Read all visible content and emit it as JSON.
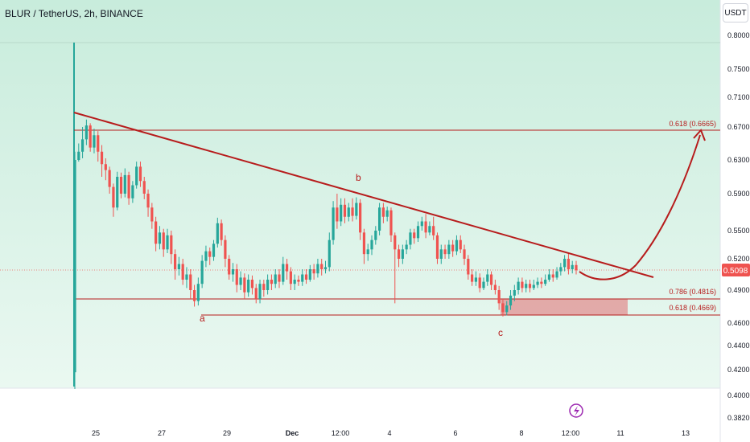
{
  "header": {
    "symbol_title": "BLUR / TetherUS, 2h, BINANCE",
    "currency_badge": "USDT"
  },
  "price_axis": {
    "ticks": [
      "0.8000",
      "0.7500",
      "0.7100",
      "0.6700",
      "0.6300",
      "0.5900",
      "0.5500",
      "0.5200",
      "0.4900",
      "0.4600",
      "0.4400",
      "0.4200",
      "0.4000",
      "0.3820"
    ],
    "current_price": "0.5098"
  },
  "time_axis": {
    "labels": [
      "25",
      "27",
      "29",
      "Dec",
      "12:00",
      "4",
      "6",
      "8",
      "12:00",
      "11",
      "13"
    ]
  },
  "annotations": {
    "fib_top": "0.618 (0.6665)",
    "fib_mid": "0.786 (0.4816)",
    "fib_low": "0.618 (0.4669)",
    "wave_a": "a",
    "wave_b": "b",
    "wave_c": "c"
  },
  "colors": {
    "background_top": "#c8ecdc",
    "background_bottom": "#eaf8f1",
    "up_candle": "#26a69a",
    "down_candle": "#ef5350",
    "drawing": "#b71c1c",
    "zone_fill": "#e29c9c",
    "price_badge": "#ef5350"
  },
  "chart_data": {
    "type": "candlestick",
    "title": "BLUR / TetherUS, 2h, BINANCE",
    "unit": "USDT",
    "interval": "2h",
    "y_ticks": [
      0.8,
      0.75,
      0.71,
      0.67,
      0.63,
      0.59,
      0.55,
      0.52,
      0.49,
      0.46,
      0.44,
      0.42,
      0.4,
      0.382
    ],
    "x_ticks": [
      "25",
      "27",
      "29",
      "Dec",
      "12:00",
      "4",
      "6",
      "8",
      "12:00",
      "11",
      "13"
    ],
    "last_price": 0.5098,
    "fib_levels": [
      {
        "label": "0.618",
        "price": 0.6665
      },
      {
        "label": "0.786",
        "price": 0.4816
      },
      {
        "label": "0.618",
        "price": 0.4669
      }
    ],
    "wave_labels": [
      "a",
      "b",
      "c"
    ],
    "support_zone": [
      0.4669,
      0.4816
    ],
    "candles_ohlc": [
      [
        0.418,
        0.63,
        0.405,
        0.64
      ],
      [
        0.63,
        0.64,
        0.628,
        0.65
      ],
      [
        0.64,
        0.655,
        0.632,
        0.67
      ],
      [
        0.655,
        0.672,
        0.648,
        0.68
      ],
      [
        0.672,
        0.645,
        0.64,
        0.675
      ],
      [
        0.645,
        0.66,
        0.638,
        0.668
      ],
      [
        0.66,
        0.64,
        0.628,
        0.665
      ],
      [
        0.64,
        0.625,
        0.61,
        0.648
      ],
      [
        0.625,
        0.618,
        0.606,
        0.632
      ],
      [
        0.618,
        0.598,
        0.59,
        0.622
      ],
      [
        0.598,
        0.575,
        0.565,
        0.602
      ],
      [
        0.575,
        0.61,
        0.572,
        0.616
      ],
      [
        0.61,
        0.59,
        0.585,
        0.615
      ],
      [
        0.59,
        0.612,
        0.586,
        0.62
      ],
      [
        0.612,
        0.585,
        0.578,
        0.616
      ],
      [
        0.585,
        0.6,
        0.58,
        0.605
      ],
      [
        0.6,
        0.622,
        0.596,
        0.628
      ],
      [
        0.622,
        0.605,
        0.598,
        0.628
      ],
      [
        0.605,
        0.59,
        0.584,
        0.61
      ],
      [
        0.59,
        0.575,
        0.565,
        0.595
      ],
      [
        0.575,
        0.56,
        0.552,
        0.58
      ],
      [
        0.56,
        0.536,
        0.528,
        0.565
      ],
      [
        0.536,
        0.548,
        0.53,
        0.555
      ],
      [
        0.548,
        0.53,
        0.522,
        0.552
      ],
      [
        0.53,
        0.545,
        0.526,
        0.552
      ],
      [
        0.545,
        0.525,
        0.515,
        0.55
      ],
      [
        0.525,
        0.51,
        0.5,
        0.53
      ],
      [
        0.51,
        0.515,
        0.504,
        0.522
      ],
      [
        0.515,
        0.5,
        0.495,
        0.52
      ],
      [
        0.5,
        0.505,
        0.492,
        0.512
      ],
      [
        0.505,
        0.49,
        0.482,
        0.51
      ],
      [
        0.49,
        0.48,
        0.475,
        0.495
      ],
      [
        0.48,
        0.496,
        0.476,
        0.502
      ],
      [
        0.496,
        0.518,
        0.492,
        0.524
      ],
      [
        0.518,
        0.528,
        0.512,
        0.534
      ],
      [
        0.528,
        0.522,
        0.514,
        0.532
      ],
      [
        0.522,
        0.536,
        0.518,
        0.54
      ],
      [
        0.536,
        0.558,
        0.532,
        0.564
      ],
      [
        0.558,
        0.54,
        0.534,
        0.562
      ],
      [
        0.54,
        0.52,
        0.512,
        0.545
      ],
      [
        0.52,
        0.505,
        0.5,
        0.524
      ],
      [
        0.505,
        0.51,
        0.498,
        0.516
      ],
      [
        0.51,
        0.495,
        0.488,
        0.515
      ],
      [
        0.495,
        0.502,
        0.49,
        0.508
      ],
      [
        0.502,
        0.488,
        0.482,
        0.506
      ],
      [
        0.488,
        0.5,
        0.484,
        0.505
      ],
      [
        0.5,
        0.492,
        0.486,
        0.504
      ],
      [
        0.492,
        0.482,
        0.478,
        0.496
      ],
      [
        0.482,
        0.496,
        0.478,
        0.5
      ],
      [
        0.496,
        0.49,
        0.484,
        0.5
      ],
      [
        0.49,
        0.5,
        0.486,
        0.505
      ],
      [
        0.5,
        0.496,
        0.49,
        0.505
      ],
      [
        0.496,
        0.505,
        0.492,
        0.51
      ],
      [
        0.505,
        0.498,
        0.492,
        0.51
      ],
      [
        0.498,
        0.515,
        0.495,
        0.522
      ],
      [
        0.515,
        0.508,
        0.5,
        0.52
      ],
      [
        0.508,
        0.496,
        0.49,
        0.512
      ],
      [
        0.496,
        0.5,
        0.49,
        0.505
      ],
      [
        0.5,
        0.498,
        0.494,
        0.504
      ],
      [
        0.498,
        0.505,
        0.494,
        0.51
      ],
      [
        0.505,
        0.5,
        0.496,
        0.51
      ],
      [
        0.5,
        0.51,
        0.498,
        0.514
      ],
      [
        0.51,
        0.506,
        0.5,
        0.515
      ],
      [
        0.506,
        0.515,
        0.502,
        0.52
      ],
      [
        0.515,
        0.51,
        0.504,
        0.52
      ],
      [
        0.51,
        0.512,
        0.506,
        0.518
      ],
      [
        0.512,
        0.54,
        0.508,
        0.548
      ],
      [
        0.54,
        0.575,
        0.535,
        0.582
      ],
      [
        0.575,
        0.56,
        0.552,
        0.59
      ],
      [
        0.56,
        0.578,
        0.555,
        0.585
      ],
      [
        0.578,
        0.565,
        0.558,
        0.585
      ],
      [
        0.565,
        0.575,
        0.56,
        0.58
      ],
      [
        0.575,
        0.566,
        0.56,
        0.585
      ],
      [
        0.566,
        0.58,
        0.562,
        0.586
      ],
      [
        0.58,
        0.548,
        0.54,
        0.584
      ],
      [
        0.548,
        0.525,
        0.515,
        0.552
      ],
      [
        0.525,
        0.53,
        0.518,
        0.536
      ],
      [
        0.53,
        0.54,
        0.524,
        0.545
      ],
      [
        0.54,
        0.55,
        0.535,
        0.555
      ],
      [
        0.55,
        0.575,
        0.545,
        0.58
      ],
      [
        0.575,
        0.565,
        0.558,
        0.58
      ],
      [
        0.565,
        0.572,
        0.56,
        0.576
      ],
      [
        0.572,
        0.545,
        0.538,
        0.575
      ],
      [
        0.545,
        0.53,
        0.478,
        0.548
      ],
      [
        0.53,
        0.52,
        0.512,
        0.535
      ],
      [
        0.52,
        0.53,
        0.515,
        0.535
      ],
      [
        0.53,
        0.535,
        0.525,
        0.54
      ],
      [
        0.535,
        0.548,
        0.53,
        0.552
      ],
      [
        0.548,
        0.542,
        0.536,
        0.552
      ],
      [
        0.542,
        0.555,
        0.538,
        0.56
      ],
      [
        0.555,
        0.56,
        0.55,
        0.565
      ],
      [
        0.56,
        0.548,
        0.542,
        0.568
      ],
      [
        0.548,
        0.555,
        0.545,
        0.56
      ],
      [
        0.555,
        0.545,
        0.54,
        0.565
      ],
      [
        0.545,
        0.52,
        0.515,
        0.548
      ],
      [
        0.52,
        0.53,
        0.515,
        0.535
      ],
      [
        0.53,
        0.525,
        0.52,
        0.535
      ],
      [
        0.525,
        0.535,
        0.52,
        0.54
      ],
      [
        0.535,
        0.528,
        0.522,
        0.54
      ],
      [
        0.528,
        0.54,
        0.524,
        0.545
      ],
      [
        0.54,
        0.53,
        0.526,
        0.545
      ],
      [
        0.53,
        0.52,
        0.514,
        0.535
      ],
      [
        0.52,
        0.505,
        0.5,
        0.524
      ],
      [
        0.505,
        0.498,
        0.494,
        0.51
      ],
      [
        0.498,
        0.502,
        0.494,
        0.508
      ],
      [
        0.502,
        0.492,
        0.488,
        0.506
      ],
      [
        0.492,
        0.498,
        0.49,
        0.502
      ],
      [
        0.498,
        0.505,
        0.494,
        0.51
      ],
      [
        0.505,
        0.495,
        0.49,
        0.508
      ],
      [
        0.495,
        0.49,
        0.486,
        0.5
      ],
      [
        0.49,
        0.478,
        0.472,
        0.494
      ],
      [
        0.478,
        0.47,
        0.466,
        0.482
      ],
      [
        0.47,
        0.476,
        0.467,
        0.48
      ],
      [
        0.476,
        0.485,
        0.472,
        0.49
      ],
      [
        0.485,
        0.49,
        0.48,
        0.495
      ],
      [
        0.49,
        0.498,
        0.486,
        0.502
      ],
      [
        0.498,
        0.492,
        0.488,
        0.502
      ],
      [
        0.492,
        0.496,
        0.488,
        0.5
      ],
      [
        0.496,
        0.492,
        0.488,
        0.5
      ],
      [
        0.492,
        0.495,
        0.49,
        0.5
      ],
      [
        0.495,
        0.498,
        0.492,
        0.502
      ],
      [
        0.498,
        0.496,
        0.492,
        0.502
      ],
      [
        0.496,
        0.5,
        0.494,
        0.505
      ],
      [
        0.5,
        0.505,
        0.498,
        0.51
      ],
      [
        0.505,
        0.502,
        0.498,
        0.51
      ],
      [
        0.502,
        0.508,
        0.5,
        0.512
      ],
      [
        0.508,
        0.512,
        0.504,
        0.516
      ],
      [
        0.512,
        0.52,
        0.508,
        0.524
      ],
      [
        0.52,
        0.51,
        0.505,
        0.526
      ],
      [
        0.51,
        0.514,
        0.506,
        0.518
      ],
      [
        0.514,
        0.509,
        0.505,
        0.518
      ]
    ]
  }
}
